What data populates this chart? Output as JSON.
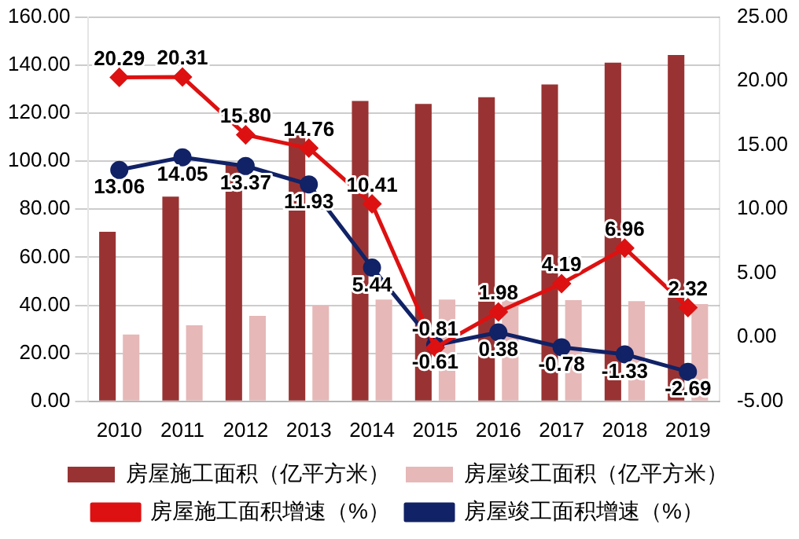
{
  "chart_data": {
    "type": "bar",
    "categories": [
      "2010",
      "2011",
      "2012",
      "2013",
      "2014",
      "2015",
      "2016",
      "2017",
      "2018",
      "2019"
    ],
    "series": [
      {
        "name": "房屋施工面积（亿平方米）",
        "type": "bar",
        "color": "#993333",
        "values": [
          70.6,
          85.2,
          98.4,
          113.4,
          125.0,
          123.8,
          126.6,
          131.9,
          141.0,
          144.2
        ]
      },
      {
        "name": "房屋竣工面积（亿平方米）",
        "type": "bar",
        "color": "#e6b8b8",
        "values": [
          27.8,
          31.7,
          35.6,
          40.0,
          42.4,
          42.4,
          42.1,
          42.1,
          41.7,
          40.5
        ]
      },
      {
        "name": "房屋施工面积增速（%）",
        "type": "line",
        "axis": "y2",
        "color": "#dd1111",
        "marker": "diamond",
        "values": [
          20.29,
          20.31,
          15.8,
          14.76,
          10.41,
          -0.81,
          1.98,
          4.19,
          6.96,
          2.32
        ],
        "value_labels": [
          "20.29",
          "20.31",
          "15.80",
          "14.76",
          "10.41",
          "-0.81",
          "1.98",
          "4.19",
          "6.96",
          "2.32"
        ]
      },
      {
        "name": "房屋竣工面积增速（%）",
        "type": "line",
        "axis": "y2",
        "color": "#112266",
        "marker": "circle",
        "values": [
          13.06,
          14.05,
          13.37,
          11.93,
          5.44,
          -0.61,
          0.38,
          -0.78,
          -1.33,
          -2.69
        ],
        "value_labels": [
          "13.06",
          "14.05",
          "13.37",
          "11.93",
          "5.44",
          "-0.61",
          "0.38",
          "-0.78",
          "-1.33",
          "-2.69"
        ]
      }
    ],
    "ylim": [
      0,
      160
    ],
    "yticks": [
      {
        "value": 0,
        "label": "0.00"
      },
      {
        "value": 20,
        "label": "20.00"
      },
      {
        "value": 40,
        "label": "40.00"
      },
      {
        "value": 60,
        "label": "60.00"
      },
      {
        "value": 80,
        "label": "80.00"
      },
      {
        "value": 100,
        "label": "100.00"
      },
      {
        "value": 120,
        "label": "120.00"
      },
      {
        "value": 140,
        "label": "140.00"
      },
      {
        "value": 160,
        "label": "160.00"
      }
    ],
    "y2lim": [
      -5,
      25
    ],
    "y2ticks": [
      {
        "value": -5,
        "label": "-5.00"
      },
      {
        "value": 0,
        "label": "0.00"
      },
      {
        "value": 5,
        "label": "5.00"
      },
      {
        "value": 10,
        "label": "10.00"
      },
      {
        "value": 15,
        "label": "15.00"
      },
      {
        "value": 20,
        "label": "20.00"
      },
      {
        "value": 25,
        "label": "25.00"
      }
    ],
    "grid": "y",
    "legend": "bottom"
  }
}
